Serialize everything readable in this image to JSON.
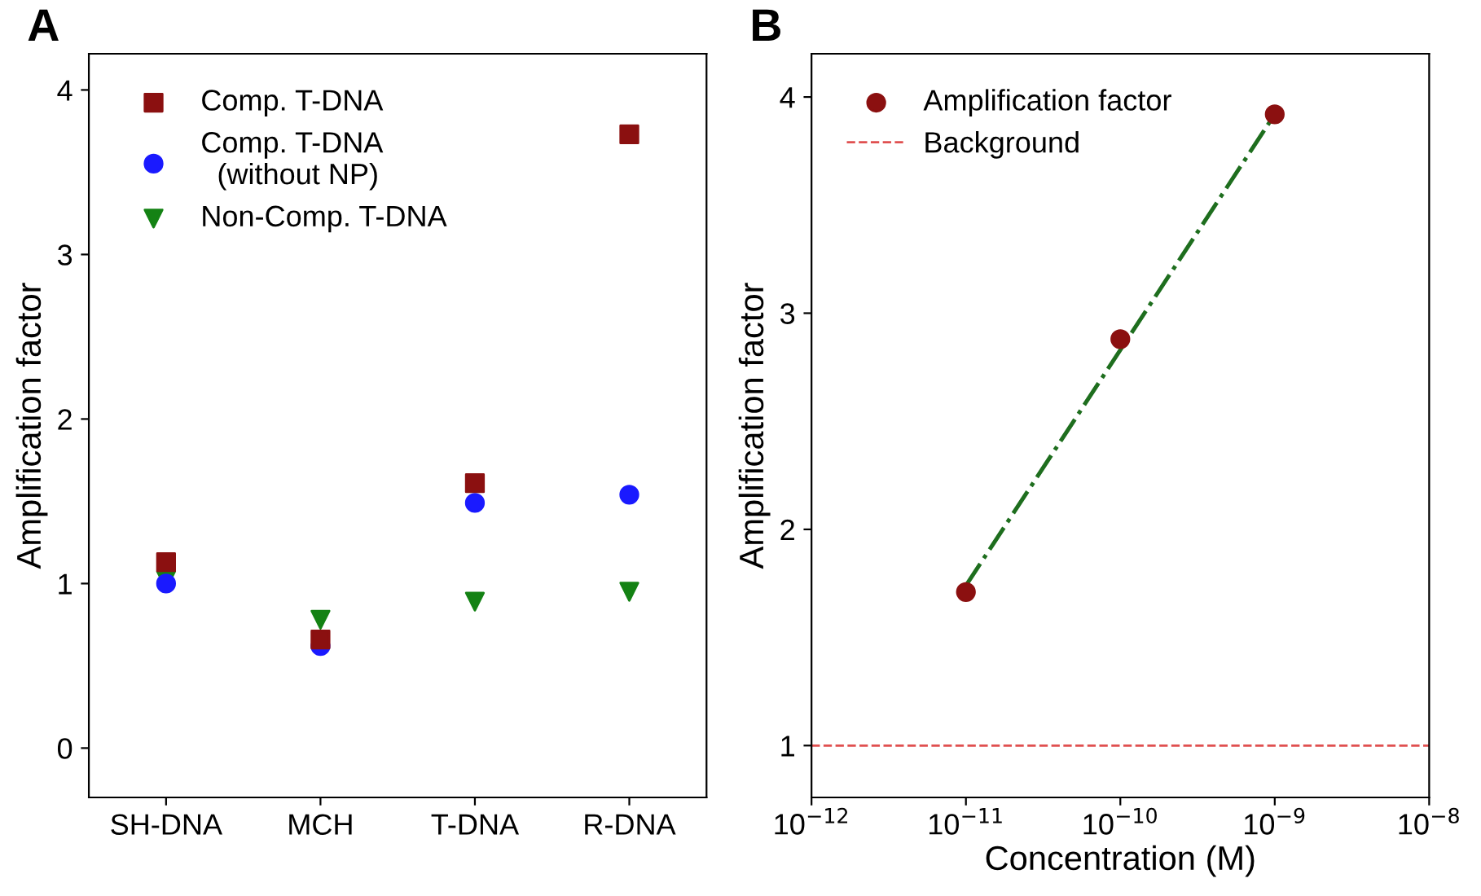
{
  "chart_data": [
    {
      "type": "scatter",
      "title": "A",
      "ylabel": "Amplification factor",
      "categories": [
        "SH-DNA",
        "MCH",
        "T-DNA",
        "R-DNA"
      ],
      "ylim": [
        -0.3,
        4.22
      ],
      "yticks": [
        0,
        1,
        2,
        3,
        4
      ],
      "legend": "top left",
      "grid": false,
      "series": [
        {
          "name": "Comp. T-DNA",
          "color": "#8b1010",
          "marker": "square",
          "values": [
            1.13,
            0.66,
            1.61,
            3.73
          ]
        },
        {
          "name": "Comp. T-DNA\n  (without NP)",
          "color": "#1a1aff",
          "marker": "circle",
          "values": [
            1.0,
            0.62,
            1.49,
            1.54
          ]
        },
        {
          "name": "Non-Comp. T-DNA",
          "color": "#148214",
          "marker": "triangle",
          "values": [
            1.02,
            0.78,
            0.89,
            0.95
          ]
        }
      ]
    },
    {
      "type": "scatter",
      "title": "B",
      "xlabel": "Concentration (M)",
      "ylabel": "Amplification factor",
      "log": "x",
      "xlim": [
        1e-12,
        1e-08
      ],
      "xticks": [
        {
          "value": 1e-12,
          "label": "10$^{−12}$"
        },
        {
          "value": 1e-11,
          "label": "10$^{−11}$"
        },
        {
          "value": 1e-10,
          "label": "10$^{−10}$"
        },
        {
          "value": 1e-09,
          "label": "10$^{−9}$"
        },
        {
          "value": 1e-08,
          "label": "10$^{−8}$"
        }
      ],
      "ylim": [
        0.76,
        4.2
      ],
      "yticks": [
        1,
        2,
        3,
        4
      ],
      "legend": "top left",
      "grid": false,
      "series": [
        {
          "name": "Amplification factor",
          "color": "#8b1010",
          "marker": "circle",
          "x": [
            1e-11,
            1e-10,
            1e-09
          ],
          "values": [
            1.71,
            2.88,
            3.92
          ]
        },
        {
          "type": "line",
          "color": "#1e6e1e",
          "line_style": "dashdot",
          "marker": "none",
          "x": [
            1e-11,
            1e-09
          ],
          "values": [
            1.74,
            3.92
          ]
        }
      ],
      "ref_lines": [
        {
          "axis": "y",
          "value": 1,
          "label": "Background",
          "color": "#e05050",
          "line_style": "dashed"
        }
      ]
    }
  ]
}
